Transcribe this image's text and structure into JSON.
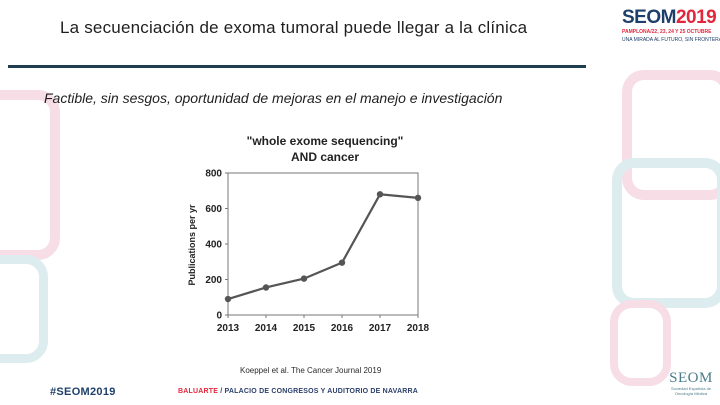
{
  "slide": {
    "title": "La secuenciación de exoma tumoral puede llegar a la clínica",
    "subtitle": "Factible, sin sesgos, oportunidad de mejoras en el manejo e investigación",
    "citation": "Koeppel et al. The Cancer Journal 2019"
  },
  "header_logo": {
    "seom": "SEOM",
    "year": "2019",
    "dates": "PAMPLONA/22, 23, 24 Y 25 OCTUBRE",
    "tagline": "UNA MIRADA AL FUTURO, SIN FRONTERAS EN CÁNCER"
  },
  "footer": {
    "hashtag": "#SEOM2019",
    "venue_brand": "BALUARTE",
    "venue_rest": " / PALACIO DE CONGRESOS Y AUDITORIO DE NAVARRA",
    "logo_name": "SEOM",
    "logo_sub": "Sociedad Española de Oncología Médica"
  },
  "colors": {
    "title_rule": "#1f3f4f",
    "brand_red": "#e3263d",
    "brand_navy": "#1f3f6b",
    "series_line": "#555555",
    "deco_pink": "#f7dde6",
    "deco_teal": "#dcecef"
  },
  "chart_data": {
    "type": "line",
    "title": "\"whole exome sequencing\"",
    "subtitle": "AND cancer",
    "xlabel": "",
    "ylabel": "Publications per yr",
    "x": [
      "2013",
      "2014",
      "2015",
      "2016",
      "2017",
      "2018"
    ],
    "series": [
      {
        "values": [
          90,
          155,
          205,
          295,
          680,
          660
        ]
      }
    ],
    "ylim": [
      0,
      800
    ],
    "yticks": [
      0,
      200,
      400,
      600,
      800
    ],
    "grid": false,
    "legend": "none"
  }
}
